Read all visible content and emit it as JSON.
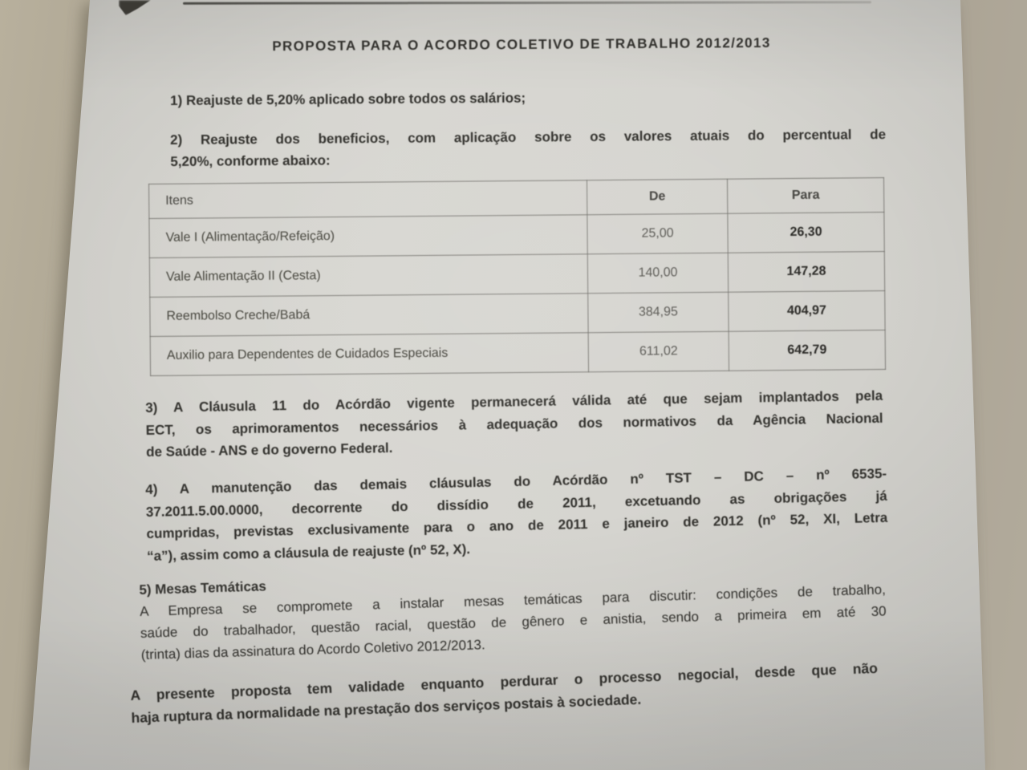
{
  "document": {
    "title": "PROPOSTA PARA O ACORDO COLETIVO DE TRABALHO 2012/2013",
    "item1": {
      "lines": [
        "1) Reajuste de 5,20% aplicado sobre todos os salários;"
      ]
    },
    "item2": {
      "lines": [
        "2) Reajuste dos beneficios, com aplicação sobre os valores atuais do percentual de",
        "5,20%, conforme abaixo:"
      ]
    },
    "table": {
      "headers": {
        "item": "Itens",
        "de": "De",
        "para": "Para"
      },
      "rows": [
        {
          "item": "Vale I (Alimentação/Refeição)",
          "de": "25,00",
          "para": "26,30"
        },
        {
          "item": "Vale Alimentação II (Cesta)",
          "de": "140,00",
          "para": "147,28"
        },
        {
          "item": "Reembolso Creche/Babá",
          "de": "384,95",
          "para": "404,97"
        },
        {
          "item": "Auxilio para Dependentes de Cuidados Especiais",
          "de": "611,02",
          "para": "642,79"
        }
      ]
    },
    "item3": {
      "lines": [
        "3) A Cláusula 11 do Acórdão vigente permanecerá válida até que sejam implantados pela",
        "ECT, os aprimoramentos necessários à adequação dos normativos da Agência Nacional",
        "de Saúde - ANS e do governo Federal."
      ]
    },
    "item4": {
      "lines": [
        "4) A manutenção das demais cláusulas do Acórdão nº TST – DC – nº 6535-",
        "37.2011.5.00.0000, decorrente do dissídio de 2011, excetuando as obrigações já",
        "cumpridas, previstas exclusivamente para o ano de 2011 e janeiro de 2012 (nº 52, XI, Letra",
        "“a”), assim como a cláusula de reajuste (nº 52, X)."
      ]
    },
    "item5": {
      "heading": "5) Mesas Temáticas",
      "lines": [
        "A Empresa se compromete a instalar mesas temáticas para discutir: condições de trabalho,",
        "saúde do trabalhador, questão racial, questão de gênero e anistia, sendo a primeira em até 30",
        "(trinta) dias da assinatura do Acordo Coletivo 2012/2013."
      ]
    },
    "closing": {
      "lines": [
        "A presente proposta tem validade enquanto perdurar o processo negocial, desde que não",
        "haja ruptura da normalidade na prestação dos serviços postais à sociedade."
      ]
    }
  },
  "colors": {
    "paper": "#d6d5d0",
    "wall_left": "#b2aa97",
    "wall_right": "#a49c8d",
    "text": "#34332f",
    "table_border": "#6a6964",
    "de_value_text": "#5b5a55",
    "para_value_text": "#2b2a27"
  }
}
